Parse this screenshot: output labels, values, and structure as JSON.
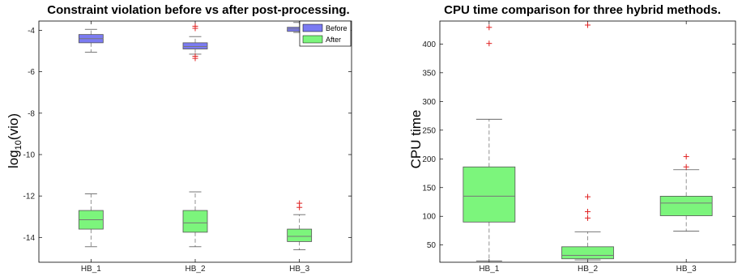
{
  "chart_data": [
    {
      "type": "box",
      "title": "Constraint violation before vs after post-processing.",
      "ylabel_main": "log",
      "ylabel_sub": "10",
      "ylabel_tail": "(vio)",
      "categories": [
        "HB_1",
        "HB_2",
        "HB_3"
      ],
      "ylim": [
        -15.2,
        -3.55
      ],
      "yticks": [
        -4,
        -6,
        -8,
        -10,
        -12,
        -14
      ],
      "ytick_labels": [
        "-4",
        "-6",
        "-8",
        "-10",
        "-12",
        "-14"
      ],
      "legend": {
        "placement": "top-right",
        "entries": [
          "Before",
          "After"
        ]
      },
      "series": [
        {
          "name": "Before",
          "color": "#7b7bf2",
          "boxes": [
            {
              "whisker_low": -5.05,
              "q1": -4.6,
              "median": -4.4,
              "q3": -4.2,
              "whisker_high": -3.95,
              "outliers": []
            },
            {
              "whisker_low": -5.15,
              "q1": -4.9,
              "median": -4.78,
              "q3": -4.6,
              "whisker_high": -4.3,
              "outliers": [
                -3.8,
                -3.9,
                -5.25,
                -5.35
              ]
            },
            {
              "whisker_low": -4.1,
              "q1": -4.05,
              "median": -3.93,
              "q3": -3.85,
              "whisker_high": -3.62,
              "outliers": []
            }
          ]
        },
        {
          "name": "After",
          "color": "#7cf57c",
          "boxes": [
            {
              "whisker_low": -14.45,
              "q1": -13.6,
              "median": -13.15,
              "q3": -12.7,
              "whisker_high": -11.9,
              "outliers": []
            },
            {
              "whisker_low": -14.45,
              "q1": -13.75,
              "median": -13.3,
              "q3": -12.7,
              "whisker_high": -11.8,
              "outliers": []
            },
            {
              "whisker_low": -14.6,
              "q1": -14.2,
              "median": -13.95,
              "q3": -13.6,
              "whisker_high": -12.9,
              "outliers": [
                -12.35,
                -12.55
              ]
            }
          ]
        }
      ]
    },
    {
      "type": "box",
      "title": "CPU time comparison for three hybrid methods.",
      "ylabel": "CPU time",
      "categories": [
        "HB_1",
        "HB_2",
        "HB_3"
      ],
      "ylim": [
        20,
        440
      ],
      "yticks": [
        50,
        100,
        150,
        200,
        250,
        300,
        350,
        400
      ],
      "ytick_labels": [
        "50",
        "100",
        "150",
        "200",
        "250",
        "300",
        "350",
        "400"
      ],
      "color": "#7cf57c",
      "boxes": [
        {
          "whisker_low": 22,
          "q1": 90,
          "median": 135,
          "q3": 186,
          "whisker_high": 269,
          "outliers": [
            401,
            429
          ]
        },
        {
          "whisker_low": 24,
          "q1": 26,
          "median": 32,
          "q3": 47,
          "whisker_high": 73,
          "outliers": [
            97,
            108,
            134,
            433
          ]
        },
        {
          "whisker_low": 74,
          "q1": 101,
          "median": 123,
          "q3": 135,
          "whisker_high": 181,
          "outliers": [
            186,
            204
          ]
        }
      ]
    }
  ]
}
